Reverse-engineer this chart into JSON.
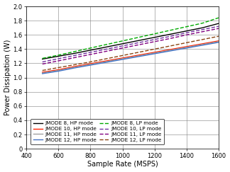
{
  "title": "",
  "xlabel": "Sample Rate (MSPS)",
  "ylabel": "Power Dissipation (W)",
  "xlim": [
    400,
    1600
  ],
  "ylim": [
    0,
    2
  ],
  "xticks": [
    400,
    600,
    800,
    1000,
    1200,
    1400,
    1600
  ],
  "yticks": [
    0,
    0.2,
    0.4,
    0.6,
    0.8,
    1.0,
    1.2,
    1.4,
    1.6,
    1.8,
    2.0
  ],
  "series": [
    {
      "label": "JMODE 8, HP mode",
      "color": "#000000",
      "linestyle": "solid",
      "linewidth": 1.0,
      "x": [
        500,
        600,
        700,
        800,
        900,
        1000,
        1100,
        1200,
        1300,
        1400,
        1500,
        1600
      ],
      "y": [
        1.26,
        1.3,
        1.34,
        1.385,
        1.43,
        1.475,
        1.52,
        1.565,
        1.61,
        1.655,
        1.7,
        1.76
      ]
    },
    {
      "label": "JMODE 10, HP mode",
      "color": "#FF2000",
      "linestyle": "solid",
      "linewidth": 1.0,
      "x": [
        500,
        600,
        700,
        800,
        900,
        1000,
        1100,
        1200,
        1300,
        1400,
        1500,
        1600
      ],
      "y": [
        1.075,
        1.11,
        1.155,
        1.195,
        1.235,
        1.275,
        1.315,
        1.355,
        1.395,
        1.435,
        1.475,
        1.515
      ]
    },
    {
      "label": "JMODE 11, HP mode",
      "color": "#A0A0A0",
      "linestyle": "solid",
      "linewidth": 1.0,
      "x": [
        500,
        600,
        700,
        800,
        900,
        1000,
        1100,
        1200,
        1300,
        1400,
        1500,
        1600
      ],
      "y": [
        1.065,
        1.1,
        1.145,
        1.185,
        1.225,
        1.265,
        1.305,
        1.345,
        1.385,
        1.425,
        1.465,
        1.505
      ]
    },
    {
      "label": "JMODE 12, HP mode",
      "color": "#4472C4",
      "linestyle": "solid",
      "linewidth": 1.0,
      "x": [
        500,
        600,
        700,
        800,
        900,
        1000,
        1100,
        1200,
        1300,
        1400,
        1500,
        1600
      ],
      "y": [
        1.055,
        1.09,
        1.135,
        1.175,
        1.215,
        1.255,
        1.295,
        1.335,
        1.375,
        1.415,
        1.455,
        1.495
      ]
    },
    {
      "label": "JMODE 8, LP mode",
      "color": "#00AA00",
      "linestyle": "dashed",
      "linewidth": 1.0,
      "x": [
        500,
        600,
        700,
        800,
        900,
        1000,
        1100,
        1200,
        1300,
        1400,
        1500,
        1600
      ],
      "y": [
        1.27,
        1.315,
        1.365,
        1.415,
        1.465,
        1.515,
        1.565,
        1.615,
        1.665,
        1.715,
        1.765,
        1.84
      ]
    },
    {
      "label": "JMODE 10, LP mode",
      "color": "#7030A0",
      "linestyle": "dashed",
      "linewidth": 1.0,
      "x": [
        500,
        600,
        700,
        800,
        900,
        1000,
        1100,
        1200,
        1300,
        1400,
        1500,
        1600
      ],
      "y": [
        1.22,
        1.265,
        1.31,
        1.355,
        1.4,
        1.445,
        1.49,
        1.535,
        1.58,
        1.63,
        1.675,
        1.72
      ]
    },
    {
      "label": "JMODE 11, LP mode",
      "color": "#800080",
      "linestyle": "dashed",
      "linewidth": 1.0,
      "x": [
        500,
        600,
        700,
        800,
        900,
        1000,
        1100,
        1200,
        1300,
        1400,
        1500,
        1600
      ],
      "y": [
        1.19,
        1.235,
        1.28,
        1.325,
        1.37,
        1.415,
        1.46,
        1.505,
        1.55,
        1.6,
        1.645,
        1.69
      ]
    },
    {
      "label": "JMODE 12, LP mode",
      "color": "#8B4513",
      "linestyle": "dashed",
      "linewidth": 1.0,
      "x": [
        500,
        600,
        700,
        800,
        900,
        1000,
        1100,
        1200,
        1300,
        1400,
        1500,
        1600
      ],
      "y": [
        1.1,
        1.14,
        1.18,
        1.22,
        1.265,
        1.31,
        1.355,
        1.4,
        1.445,
        1.49,
        1.535,
        1.58
      ]
    }
  ],
  "legend_ncol": 2,
  "legend_fontsize": 5.2,
  "axis_fontsize": 7,
  "tick_fontsize": 6,
  "background_color": "#FFFFFF",
  "grid_color": "#808080",
  "grid_linewidth": 0.4
}
